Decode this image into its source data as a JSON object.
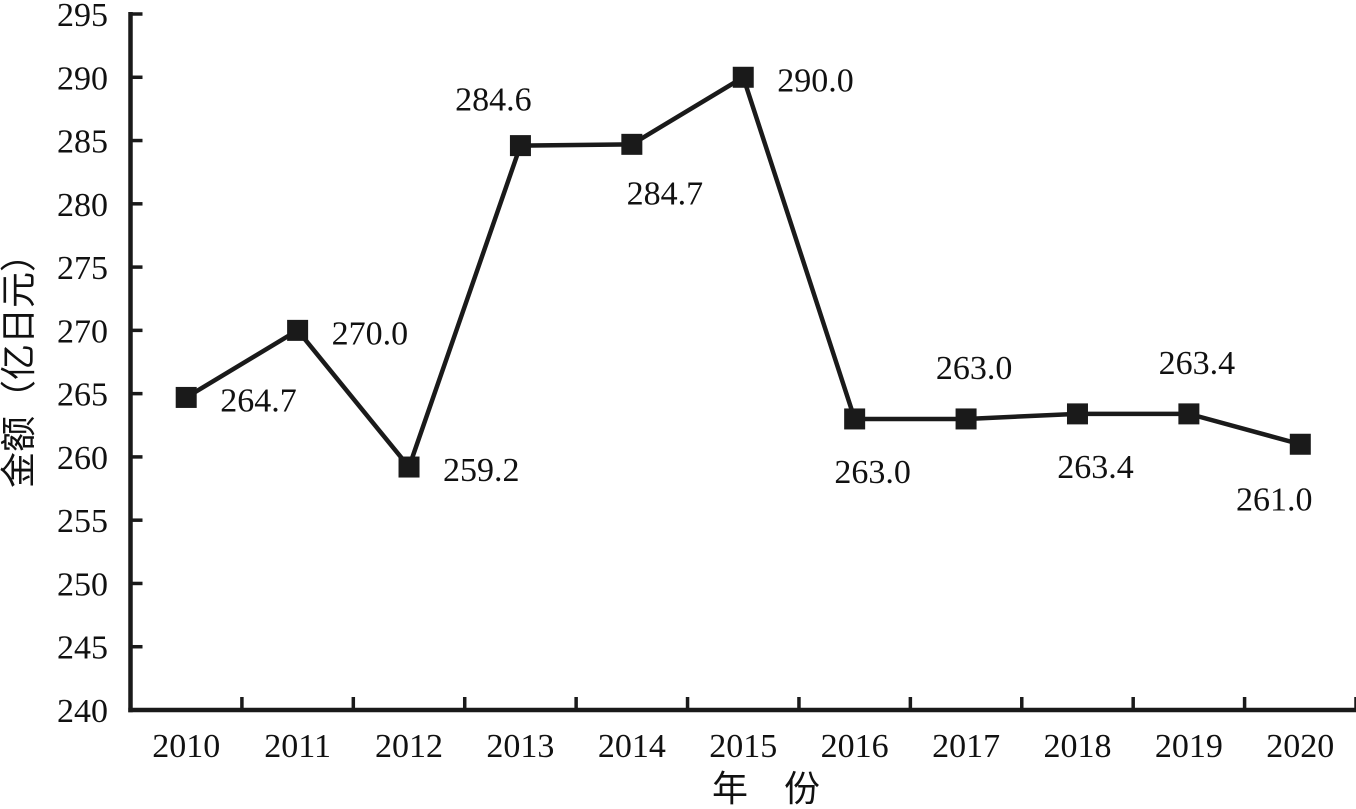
{
  "chart_data": {
    "type": "line",
    "title": "",
    "xlabel": "年　份",
    "ylabel": "金额（亿日元）",
    "categories": [
      "2010",
      "2011",
      "2012",
      "2013",
      "2014",
      "2015",
      "2016",
      "2017",
      "2018",
      "2019",
      "2020"
    ],
    "series": [
      {
        "name": "金额",
        "values": [
          264.7,
          270.0,
          259.2,
          284.6,
          284.7,
          290.0,
          263.0,
          263.0,
          263.4,
          263.4,
          261.0
        ],
        "data_labels": [
          "264.7",
          "270.0",
          "259.2",
          "284.6",
          "284.7",
          "290.0",
          "263.0",
          "263.0",
          "263.4",
          "263.4",
          "261.0"
        ],
        "label_placements": [
          "right",
          "right",
          "right",
          "above-left",
          "below-right",
          "right",
          "below",
          "above",
          "below",
          "above",
          "below-left"
        ]
      }
    ],
    "ylim": [
      240,
      295
    ],
    "ytick_interval": 5,
    "yticks": [
      "240",
      "245",
      "250",
      "255",
      "260",
      "265",
      "270",
      "275",
      "280",
      "285",
      "290",
      "295"
    ],
    "grid": false,
    "legend": "none",
    "marker": "filled-square",
    "colors": {
      "line": "#1a1a1a",
      "marker": "#1a1a1a",
      "text": "#111111",
      "background": "#ffffff"
    }
  }
}
